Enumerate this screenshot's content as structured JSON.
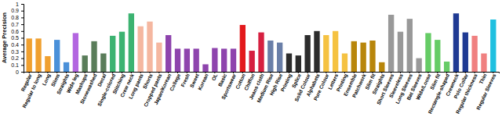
{
  "chart_data": {
    "type": "bar",
    "y_label": "Average Precision",
    "categories": [
      "Regular",
      "Regular to long",
      "Long",
      "Slims",
      "Straights",
      "Wide leg",
      "Mashups",
      "Stonewashed",
      "Decal",
      "Single-colored",
      "Stitching",
      "Crew neck",
      "Long pants",
      "Shorts",
      "Cropped pants",
      "Japan/Korean",
      "College",
      "Fresh",
      "Sweet",
      "Korean",
      "OL",
      "Basic",
      "Sportswear",
      "Cotton",
      "Chiffon",
      "Jeans cloth",
      "Medium Rise",
      "High Rise",
      "Printing",
      "Splice",
      "Solid Colour",
      "Alphabets",
      "Pure Colour",
      "Letters",
      "Printing",
      "Ensemble",
      "Patchwork",
      "Slim fit",
      "Straights",
      "Short Sleeves",
      "Sleeveless",
      "Long Sleeves",
      "Bat Sleeves",
      "Wide/Loose",
      "Slim fit",
      "Rectangle-shaped",
      "Crewneck",
      "Polo Collar",
      "Regular thickness",
      "Thin",
      "Regular Sleeves"
    ],
    "values": [
      0.49,
      0.49,
      0.23,
      0.47,
      0.14,
      0.57,
      0.24,
      0.45,
      0.27,
      0.53,
      0.59,
      0.86,
      0.67,
      0.74,
      0.43,
      0.54,
      0.34,
      0.34,
      0.34,
      0.11,
      0.35,
      0.34,
      0.34,
      0.69,
      0.31,
      0.58,
      0.46,
      0.43,
      0.27,
      0.24,
      0.54,
      0.6,
      0.54,
      0.6,
      0.27,
      0.45,
      0.43,
      0.46,
      0.14,
      0.84,
      0.59,
      0.78,
      0.2,
      0.57,
      0.47,
      0.15,
      0.86,
      0.58,
      0.53,
      0.27,
      0.77
    ],
    "colors": [
      "#f0a030",
      "#f0a030",
      "#f0a030",
      "#4a90d9",
      "#4a90d9",
      "#b366e0",
      "#5a7d5a",
      "#5a7d5a",
      "#5a7d5a",
      "#3cb371",
      "#3cb371",
      "#3cb371",
      "#f5b7a0",
      "#f5b7a0",
      "#f5b7a0",
      "#8e44ad",
      "#8e44ad",
      "#8e44ad",
      "#8e44ad",
      "#8e44ad",
      "#8e44ad",
      "#8e44ad",
      "#8e44ad",
      "#e31a1c",
      "#d62040",
      "#d62040",
      "#6a7fa8",
      "#6a7fa8",
      "#2c2c2c",
      "#2c2c2c",
      "#2c2c2c",
      "#2c2c2c",
      "#f5c242",
      "#f5c242",
      "#f5c242",
      "#b8860b",
      "#b8860b",
      "#b8860b",
      "#b8860b",
      "#999999",
      "#999999",
      "#999999",
      "#999999",
      "#66cc66",
      "#66cc66",
      "#66cc66",
      "#1f3a93",
      "#1f3a93",
      "#f08080",
      "#f08080",
      "#20c0e0"
    ],
    "ylim": [
      0,
      1
    ],
    "yticks": [
      0,
      0.1,
      0.2,
      0.3,
      0.4,
      0.5,
      0.6,
      0.7,
      0.8,
      0.9,
      1
    ],
    "grid": false
  }
}
